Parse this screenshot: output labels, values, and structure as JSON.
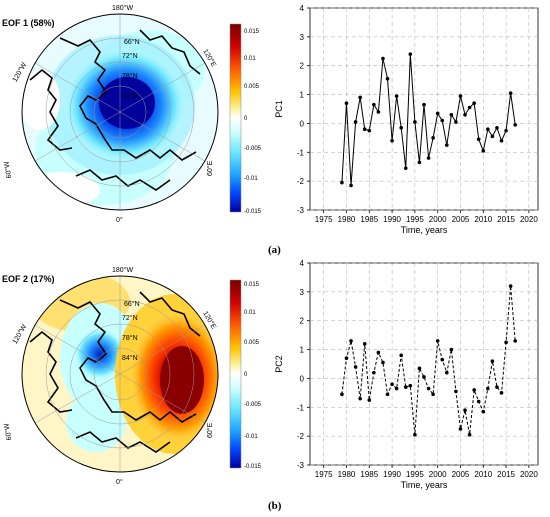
{
  "panel_a": {
    "map_title": "EOF 1 (58%)",
    "panel_label": "(a)",
    "colorbar_ticks": [
      "0.015",
      "0.01",
      "0.005",
      "0",
      "-0.005",
      "-0.01",
      "-0.015"
    ],
    "map_labels": [
      "180°W",
      "120°W",
      "120°E",
      "60°W",
      "60°E",
      "0°",
      "66°N",
      "72°N",
      "78°N",
      "84°N"
    ]
  },
  "panel_b": {
    "map_title": "EOF 2 (17%)",
    "panel_label": "(b)",
    "colorbar_ticks": [
      "0.015",
      "0.01",
      "0.005",
      "0",
      "-0.005",
      "-0.01",
      "-0.015"
    ],
    "map_labels": [
      "180°W",
      "120°W",
      "120°E",
      "60°W",
      "60°E",
      "0°",
      "66°N",
      "72°N",
      "78°N",
      "84°N"
    ]
  },
  "colors": {
    "cb_stops": [
      "#7a0000",
      "#c80000",
      "#ff2a00",
      "#ff7a00",
      "#ffc400",
      "#ffef80",
      "#ffffff",
      "#c8ffff",
      "#6ee6ff",
      "#1ea6ff",
      "#0046ff",
      "#00009a"
    ]
  },
  "chart_data": [
    {
      "type": "line",
      "xlabel": "Time, years",
      "ylabel": "PC1",
      "xlim": [
        1972,
        2022
      ],
      "ylim": [
        -3,
        4
      ],
      "xticks": [
        1975,
        1980,
        1985,
        1990,
        1995,
        2000,
        2005,
        2010,
        2015,
        2020
      ],
      "yticks": [
        -3,
        -2,
        -1,
        0,
        1,
        2,
        3,
        4
      ],
      "grid": true,
      "line_style": "solid",
      "x": [
        1979,
        1980,
        1981,
        1982,
        1983,
        1984,
        1985,
        1986,
        1987,
        1988,
        1989,
        1990,
        1991,
        1992,
        1993,
        1994,
        1995,
        1996,
        1997,
        1998,
        1999,
        2000,
        2001,
        2002,
        2003,
        2004,
        2005,
        2006,
        2007,
        2008,
        2009,
        2010,
        2011,
        2012,
        2013,
        2014,
        2015,
        2016,
        2017
      ],
      "y": [
        -2.05,
        0.7,
        -2.15,
        0.05,
        0.9,
        -0.2,
        -0.25,
        0.65,
        0.4,
        2.25,
        1.55,
        -0.6,
        0.95,
        -0.15,
        -1.55,
        2.4,
        0.05,
        -1.35,
        0.65,
        -1.2,
        -0.5,
        0.35,
        0.1,
        -0.75,
        0.3,
        0.05,
        0.95,
        0.3,
        0.55,
        0.7,
        -0.55,
        -0.95,
        -0.2,
        -0.45,
        -0.15,
        -0.6,
        -0.25,
        1.05,
        -0.05
      ]
    },
    {
      "type": "line",
      "xlabel": "Time, years",
      "ylabel": "PC2",
      "xlim": [
        1972,
        2022
      ],
      "ylim": [
        -3,
        4
      ],
      "xticks": [
        1975,
        1980,
        1985,
        1990,
        1995,
        2000,
        2005,
        2010,
        2015,
        2020
      ],
      "yticks": [
        -3,
        -2,
        -1,
        0,
        1,
        2,
        3,
        4
      ],
      "grid": true,
      "line_style": "dashed",
      "x": [
        1979,
        1980,
        1981,
        1982,
        1983,
        1984,
        1985,
        1986,
        1987,
        1988,
        1989,
        1990,
        1991,
        1992,
        1993,
        1994,
        1995,
        1996,
        1997,
        1998,
        1999,
        2000,
        2001,
        2002,
        2003,
        2004,
        2005,
        2006,
        2007,
        2008,
        2009,
        2010,
        2011,
        2012,
        2013,
        2014,
        2015,
        2016,
        2017
      ],
      "y": [
        -0.55,
        0.7,
        1.3,
        0.4,
        -0.7,
        1.2,
        -0.75,
        0.2,
        0.9,
        0.55,
        -0.55,
        -0.2,
        -0.35,
        0.8,
        -0.3,
        -0.25,
        -1.95,
        0.35,
        0.05,
        -0.35,
        -0.55,
        1.3,
        0.65,
        0.2,
        1.0,
        -0.45,
        -1.75,
        -1.1,
        -1.95,
        -0.4,
        -0.8,
        -1.15,
        -0.35,
        0.6,
        -0.3,
        -0.5,
        1.25,
        3.2,
        1.3
      ]
    }
  ]
}
